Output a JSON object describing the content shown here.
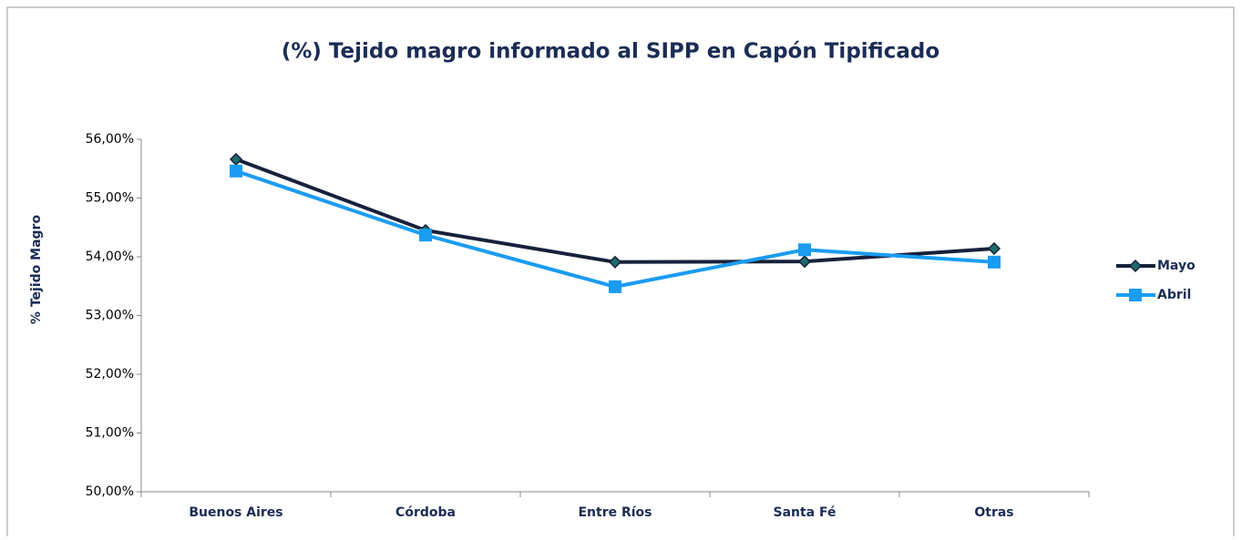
{
  "chart_data": {
    "type": "line",
    "title": "(%) Tejido magro informado al SIPP en Capón Tipificado",
    "y_label": "% Tejido Magro",
    "categories": [
      "Buenos Aires",
      "Córdoba",
      "Entre Ríos",
      "Santa Fé",
      "Otras"
    ],
    "series": [
      {
        "name": "Mayo",
        "color": "#17213b",
        "marker": "diamond",
        "marker_fill": "#1d6b6b",
        "values": [
          55.66,
          54.45,
          53.91,
          53.92,
          54.14
        ]
      },
      {
        "name": "Abril",
        "color": "#1a9cf2",
        "marker": "square",
        "marker_fill": "#1a9cf2",
        "values": [
          55.46,
          54.37,
          53.49,
          54.12,
          53.91
        ]
      }
    ],
    "ylim": [
      50,
      56
    ],
    "yticks": [
      {
        "value": 50,
        "label": "50,00%"
      },
      {
        "value": 51,
        "label": "51,00%"
      },
      {
        "value": 52,
        "label": "52,00%"
      },
      {
        "value": 53,
        "label": "53,00%"
      },
      {
        "value": 54,
        "label": "54,00%"
      },
      {
        "value": 55,
        "label": "55,00%"
      },
      {
        "value": 56,
        "label": "56,00%"
      }
    ],
    "grid": false,
    "legend": "right"
  }
}
